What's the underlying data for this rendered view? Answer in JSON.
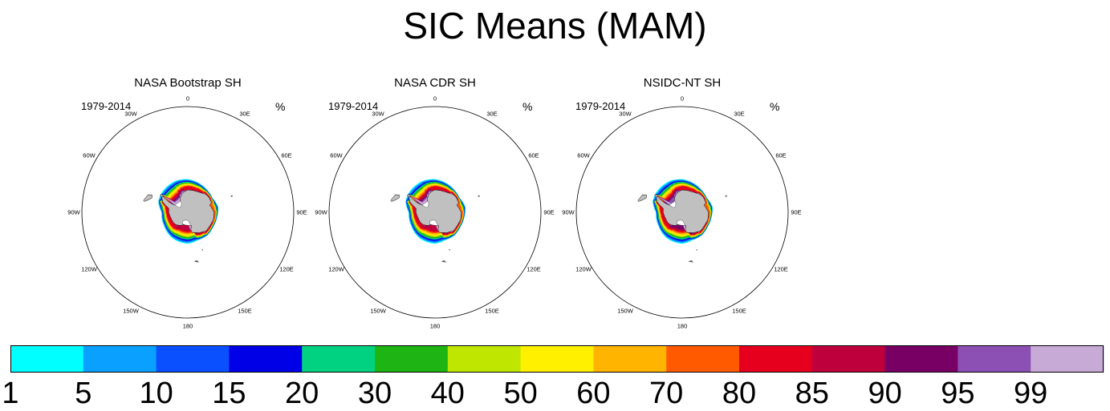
{
  "title": "SIC Means (MAM)",
  "panels": [
    {
      "title": "NASA Bootstrap SH",
      "years": "1979-2014",
      "unit": "%"
    },
    {
      "title": "NASA CDR SH",
      "years": "1979-2014",
      "unit": "%"
    },
    {
      "title": "NSIDC-NT SH",
      "years": "1979-2014",
      "unit": "%"
    }
  ],
  "longitude_labels": [
    "0",
    "30E",
    "60E",
    "90E",
    "120E",
    "150E",
    "180",
    "150W",
    "120W",
    "90W",
    "60W",
    "30W"
  ],
  "colorbar": {
    "tick_labels": [
      "1",
      "5",
      "10",
      "15",
      "20",
      "30",
      "40",
      "50",
      "60",
      "70",
      "80",
      "85",
      "90",
      "95",
      "99"
    ],
    "colors": [
      "#00ffff",
      "#0aa0ff",
      "#0a50ff",
      "#0000e6",
      "#00d282",
      "#1eb414",
      "#bee600",
      "#fff000",
      "#ffb400",
      "#ff5a00",
      "#e6001e",
      "#be003c",
      "#780064",
      "#8c50b4",
      "#c8aad7"
    ]
  },
  "land_color": "#c0c0c0"
}
